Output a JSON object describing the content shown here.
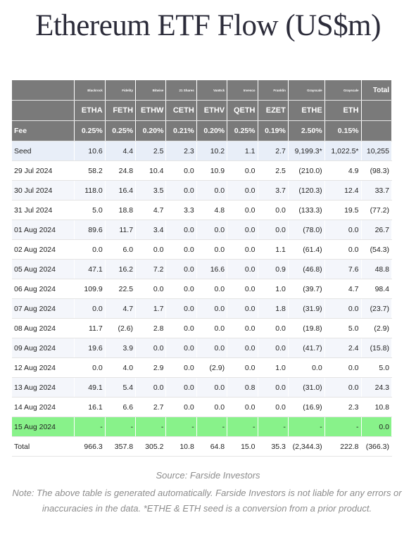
{
  "title": "Ethereum ETF Flow (US$m)",
  "issuers": [
    "Blackrock",
    "Fidelity",
    "Bitwise",
    "21 Shares",
    "VanEck",
    "Invesco",
    "Franklin",
    "Grayscale",
    "Grayscale"
  ],
  "total_header": "Total",
  "tickers": [
    "ETHA",
    "FETH",
    "ETHW",
    "CETH",
    "ETHV",
    "QETH",
    "EZET",
    "ETHE",
    "ETH"
  ],
  "fee_label": "Fee",
  "fees": [
    "0.25%",
    "0.25%",
    "0.20%",
    "0.21%",
    "0.20%",
    "0.25%",
    "0.19%",
    "2.50%",
    "0.15%"
  ],
  "rows": [
    {
      "label": "Seed",
      "values": [
        "10.6",
        "4.4",
        "2.5",
        "2.3",
        "10.2",
        "1.1",
        "2.7",
        "9,199.3*",
        "1,022.5*",
        "10,255"
      ]
    },
    {
      "label": "29 Jul 2024",
      "values": [
        "58.2",
        "24.8",
        "10.4",
        "0.0",
        "10.9",
        "0.0",
        "2.5",
        "(210.0)",
        "4.9",
        "(98.3)"
      ]
    },
    {
      "label": "30 Jul 2024",
      "values": [
        "118.0",
        "16.4",
        "3.5",
        "0.0",
        "0.0",
        "0.0",
        "3.7",
        "(120.3)",
        "12.4",
        "33.7"
      ]
    },
    {
      "label": "31 Jul 2024",
      "values": [
        "5.0",
        "18.8",
        "4.7",
        "3.3",
        "4.8",
        "0.0",
        "0.0",
        "(133.3)",
        "19.5",
        "(77.2)"
      ]
    },
    {
      "label": "01 Aug 2024",
      "values": [
        "89.6",
        "11.7",
        "3.4",
        "0.0",
        "0.0",
        "0.0",
        "0.0",
        "(78.0)",
        "0.0",
        "26.7"
      ]
    },
    {
      "label": "02 Aug 2024",
      "values": [
        "0.0",
        "6.0",
        "0.0",
        "0.0",
        "0.0",
        "0.0",
        "1.1",
        "(61.4)",
        "0.0",
        "(54.3)"
      ]
    },
    {
      "label": "05 Aug 2024",
      "values": [
        "47.1",
        "16.2",
        "7.2",
        "0.0",
        "16.6",
        "0.0",
        "0.9",
        "(46.8)",
        "7.6",
        "48.8"
      ]
    },
    {
      "label": "06 Aug 2024",
      "values": [
        "109.9",
        "22.5",
        "0.0",
        "0.0",
        "0.0",
        "0.0",
        "1.0",
        "(39.7)",
        "4.7",
        "98.4"
      ]
    },
    {
      "label": "07 Aug 2024",
      "values": [
        "0.0",
        "4.7",
        "1.7",
        "0.0",
        "0.0",
        "0.0",
        "1.8",
        "(31.9)",
        "0.0",
        "(23.7)"
      ]
    },
    {
      "label": "08 Aug 2024",
      "values": [
        "11.7",
        "(2.6)",
        "2.8",
        "0.0",
        "0.0",
        "0.0",
        "0.0",
        "(19.8)",
        "5.0",
        "(2.9)"
      ]
    },
    {
      "label": "09 Aug 2024",
      "values": [
        "19.6",
        "3.9",
        "0.0",
        "0.0",
        "0.0",
        "0.0",
        "0.0",
        "(41.7)",
        "2.4",
        "(15.8)"
      ]
    },
    {
      "label": "12 Aug 2024",
      "values": [
        "0.0",
        "4.0",
        "2.9",
        "0.0",
        "(2.9)",
        "0.0",
        "1.0",
        "0.0",
        "0.0",
        "5.0"
      ]
    },
    {
      "label": "13 Aug 2024",
      "values": [
        "49.1",
        "5.4",
        "0.0",
        "0.0",
        "0.0",
        "0.8",
        "0.0",
        "(31.0)",
        "0.0",
        "24.3"
      ]
    },
    {
      "label": "14 Aug 2024",
      "values": [
        "16.1",
        "6.6",
        "2.7",
        "0.0",
        "0.0",
        "0.0",
        "0.0",
        "(16.9)",
        "2.3",
        "10.8"
      ]
    },
    {
      "label": "15 Aug 2024",
      "values": [
        "-",
        "-",
        "-",
        "-",
        "-",
        "-",
        "-",
        "-",
        "-",
        "0.0"
      ]
    },
    {
      "label": "Total",
      "values": [
        "966.3",
        "357.8",
        "305.2",
        "10.8",
        "64.8",
        "15.0",
        "35.3",
        "(2,344.3)",
        "222.8",
        "(366.3)"
      ]
    }
  ],
  "highlight_row_color": "#88f28a",
  "negative_color": "#d11b1b",
  "source": "Source: Farside Investors",
  "note": "Note: The above table is generated automatically. Farside Investors is not liable for any errors or inaccuracies in the data. *ETHE & ETH seed is a conversion from a prior product."
}
